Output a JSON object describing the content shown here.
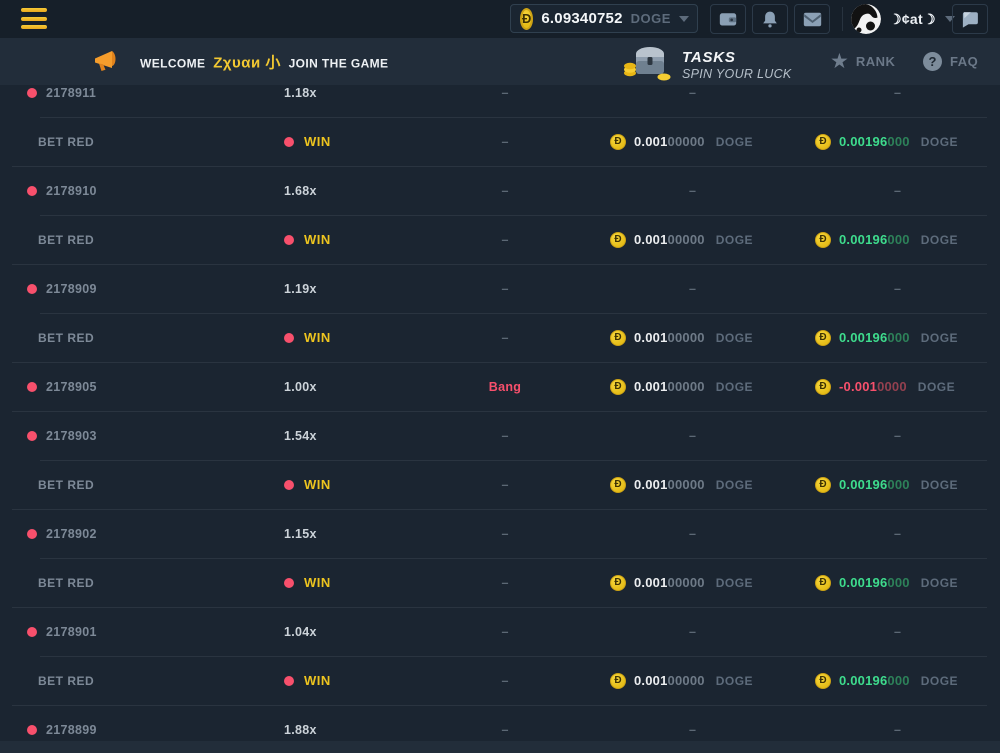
{
  "topbar": {
    "balance": {
      "coin_symbol": "Ð",
      "value": "6.09340752",
      "currency": "DOGE"
    },
    "user": {
      "name": "☽¢at☽"
    }
  },
  "welcome_bar": {
    "message_prefix": "WELCOME",
    "message_name": "Ζχυαи 小",
    "message_suffix": "JOIN THE GAME",
    "tasks_title": "TASKS",
    "tasks_subtitle": "SPIN YOUR LUCK",
    "rank_label": "RANK",
    "faq_label": "FAQ"
  },
  "table": {
    "dash": "–",
    "coin_symbol": "Ð",
    "rows": [
      {
        "type": "round",
        "id": "2178911",
        "multiplier": "1.18x"
      },
      {
        "type": "bet",
        "label": "BET RED",
        "result": "WIN",
        "bet": {
          "main": "0.001",
          "zeros": "00000",
          "unit": "DOGE"
        },
        "profit": {
          "main": "0.00196",
          "zeros": "000",
          "unit": "DOGE"
        }
      },
      {
        "type": "round",
        "id": "2178910",
        "multiplier": "1.68x"
      },
      {
        "type": "bet",
        "label": "BET RED",
        "result": "WIN",
        "bet": {
          "main": "0.001",
          "zeros": "00000",
          "unit": "DOGE"
        },
        "profit": {
          "main": "0.00196",
          "zeros": "000",
          "unit": "DOGE"
        }
      },
      {
        "type": "round",
        "id": "2178909",
        "multiplier": "1.19x"
      },
      {
        "type": "bet",
        "label": "BET RED",
        "result": "WIN",
        "bet": {
          "main": "0.001",
          "zeros": "00000",
          "unit": "DOGE"
        },
        "profit": {
          "main": "0.00196",
          "zeros": "000",
          "unit": "DOGE"
        }
      },
      {
        "type": "bang",
        "id": "2178905",
        "multiplier": "1.00x",
        "result": "Bang",
        "bet": {
          "main": "0.001",
          "zeros": "00000",
          "unit": "DOGE"
        },
        "loss": {
          "main": "-0.001",
          "zeros": "0000",
          "unit": "DOGE"
        }
      },
      {
        "type": "round",
        "id": "2178903",
        "multiplier": "1.54x"
      },
      {
        "type": "bet",
        "label": "BET RED",
        "result": "WIN",
        "bet": {
          "main": "0.001",
          "zeros": "00000",
          "unit": "DOGE"
        },
        "profit": {
          "main": "0.00196",
          "zeros": "000",
          "unit": "DOGE"
        }
      },
      {
        "type": "round",
        "id": "2178902",
        "multiplier": "1.15x"
      },
      {
        "type": "bet",
        "label": "BET RED",
        "result": "WIN",
        "bet": {
          "main": "0.001",
          "zeros": "00000",
          "unit": "DOGE"
        },
        "profit": {
          "main": "0.00196",
          "zeros": "000",
          "unit": "DOGE"
        }
      },
      {
        "type": "round",
        "id": "2178901",
        "multiplier": "1.04x"
      },
      {
        "type": "bet",
        "label": "BET RED",
        "result": "WIN",
        "bet": {
          "main": "0.001",
          "zeros": "00000",
          "unit": "DOGE"
        },
        "profit": {
          "main": "0.00196",
          "zeros": "000",
          "unit": "DOGE"
        }
      },
      {
        "type": "round",
        "id": "2178899",
        "multiplier": "1.88x"
      }
    ]
  },
  "colors": {
    "accent_red": "#f8506c",
    "win_yellow": "#edc41f",
    "profit_green": "#3edc8d",
    "coin_yellow": "#e9c323",
    "background": "#1b2531"
  }
}
